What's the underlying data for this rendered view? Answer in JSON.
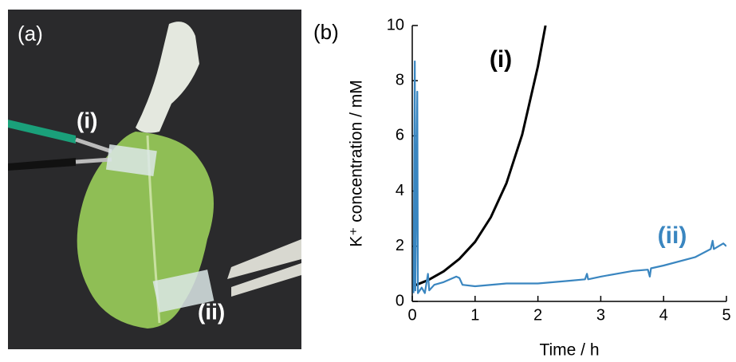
{
  "panel_a": {
    "label": "(a)",
    "sensor_labels": [
      "(i)",
      "(ii)"
    ]
  },
  "chart_data": {
    "type": "line",
    "panel_label": "(b)",
    "xlabel": "Time / h",
    "ylabel": "K⁺ concentration / mM",
    "xlim": [
      0,
      5
    ],
    "xticks": [
      0,
      1,
      2,
      3,
      4,
      5
    ],
    "ylim": [
      0,
      10
    ],
    "yticks": [
      0,
      2,
      4,
      6,
      8,
      10
    ],
    "grid": false,
    "series": [
      {
        "name": "(i)",
        "color": "#000000",
        "x": [
          0.03,
          0.25,
          0.5,
          0.75,
          1.0,
          1.25,
          1.5,
          1.75,
          2.0,
          2.12
        ],
        "values": [
          0.57,
          0.77,
          1.09,
          1.54,
          2.16,
          3.05,
          4.29,
          6.05,
          8.52,
          10.0
        ]
      },
      {
        "name": "(ii)",
        "color": "#3a86c0",
        "x": [
          0.02,
          0.04,
          0.05,
          0.08,
          0.09,
          0.15,
          0.2,
          0.25,
          0.27,
          0.35,
          0.5,
          0.7,
          0.75,
          0.8,
          1.0,
          1.5,
          2.0,
          2.5,
          2.75,
          2.78,
          2.8,
          3.0,
          3.5,
          3.75,
          3.78,
          3.8,
          4.0,
          4.5,
          4.75,
          4.78,
          4.8,
          4.95,
          5.0
        ],
        "values": [
          0.3,
          8.7,
          0.4,
          7.6,
          0.3,
          0.5,
          0.3,
          1.0,
          0.4,
          0.6,
          0.7,
          0.9,
          0.85,
          0.6,
          0.55,
          0.65,
          0.65,
          0.75,
          0.8,
          1.0,
          0.8,
          0.9,
          1.1,
          1.15,
          0.9,
          1.2,
          1.3,
          1.6,
          1.9,
          2.2,
          1.9,
          2.1,
          2.0
        ]
      }
    ]
  }
}
